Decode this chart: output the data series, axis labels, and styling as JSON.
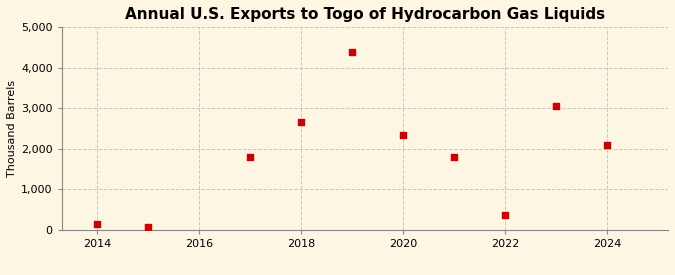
{
  "title": "Annual U.S. Exports to Togo of Hydrocarbon Gas Liquids",
  "ylabel": "Thousand Barrels",
  "background_color": "#fdf6e3",
  "x": [
    2014,
    2015,
    2017,
    2018,
    2019,
    2020,
    2021,
    2022,
    2023,
    2024
  ],
  "y": [
    150,
    75,
    1800,
    2650,
    4400,
    2350,
    1800,
    375,
    3050,
    2100
  ],
  "marker_color": "#cc0000",
  "marker_size": 25,
  "xlim": [
    2013.3,
    2025.2
  ],
  "ylim": [
    0,
    5000
  ],
  "yticks": [
    0,
    1000,
    2000,
    3000,
    4000,
    5000
  ],
  "xticks": [
    2014,
    2016,
    2018,
    2020,
    2022,
    2024
  ],
  "grid_color": "#bbbbbb",
  "grid_style": "--",
  "grid_alpha": 0.8,
  "title_fontsize": 11,
  "label_fontsize": 8,
  "tick_fontsize": 8,
  "source_fontsize": 7.5
}
